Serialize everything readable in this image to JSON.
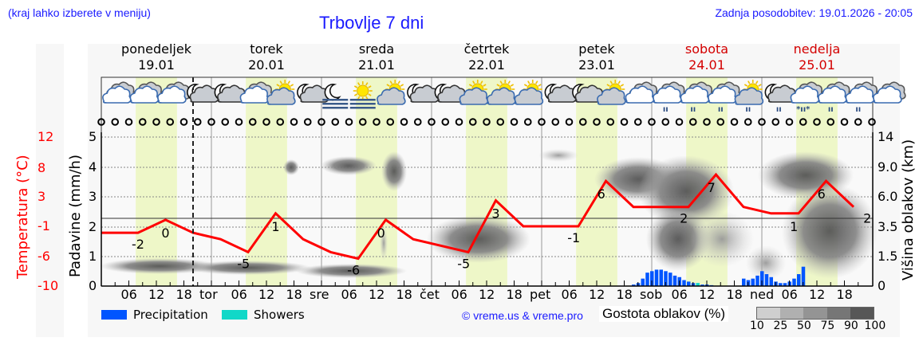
{
  "header": {
    "menu_hint": "(kraj lahko izberete v meniju)",
    "title": "Trbovlje 7 dni",
    "last_update": "Zadnja posodobitev: 19.01.2026 - 20:05"
  },
  "days": [
    {
      "name": "ponedeljek",
      "date": "19.01",
      "weekend": false
    },
    {
      "name": "torek",
      "date": "20.01",
      "weekend": false
    },
    {
      "name": "sreda",
      "date": "21.01",
      "weekend": false
    },
    {
      "name": "četrtek",
      "date": "22.01",
      "weekend": false
    },
    {
      "name": "petek",
      "date": "23.01",
      "weekend": false
    },
    {
      "name": "sobota",
      "date": "24.01",
      "weekend": true
    },
    {
      "name": "nedelja",
      "date": "25.01",
      "weekend": true
    }
  ],
  "axes": {
    "temp_title": "Temperatura (°C)",
    "temp_ticks": [
      "12",
      "8",
      "3",
      "-1",
      "-6",
      "-10"
    ],
    "rain_title": "Padavine (mm/h)",
    "rain_ticks": [
      "5",
      "4",
      "3",
      "2",
      "1",
      "0"
    ],
    "cloud_title": "Višina oblakov (km)",
    "cloud_ticks": [
      "14",
      "9.0",
      "6.0",
      "3.5",
      "1.5",
      "0"
    ],
    "x_ticks": [
      "06",
      "12",
      "18",
      "tor",
      "06",
      "12",
      "18",
      "sre",
      "06",
      "12",
      "18",
      "čet",
      "06",
      "12",
      "18",
      "pet",
      "06",
      "12",
      "18",
      "sob",
      "06",
      "12",
      "18",
      "ned",
      "06",
      "12",
      "18"
    ]
  },
  "legend": {
    "precipitation": "Precipitation",
    "showers": "Showers",
    "copyright": "© vreme.us & vreme.pro",
    "cloud_density": "Gostota oblakov (%)",
    "density_ticks": [
      "10",
      "25",
      "50",
      "75",
      "90",
      "100"
    ]
  },
  "icons": [
    "cloudy",
    "cloudy",
    "cloudy",
    "night-partly-cloudy",
    "night-partly-cloudy",
    "cloudy",
    "partly-sunny",
    "night-partly-cloudy",
    "night-fog",
    "sun-fog",
    "partly-sunny",
    "night-partly-cloudy",
    "night-partly-cloudy",
    "partly-sunny",
    "partly-sunny",
    "partly-sunny",
    "night-partly-cloudy",
    "night-partly-cloudy",
    "partly-sunny",
    "cloudy",
    "cloudy-light-rain",
    "cloudy-light-rain",
    "cloudy-light-rain",
    "partly-sunny-light-rain",
    "night-cloudy-light-rain",
    "cloudy-sleet",
    "cloudy-light-rain",
    "cloudy-light-rain",
    "cloudy"
  ],
  "colors": {
    "temperature_line": "#ff0000",
    "precipitation": "#0055ff",
    "showers": "#11d8c8",
    "daylight": "#eef7c8",
    "title": "#1a1aff",
    "weekend": "#d40000"
  },
  "chart_data": {
    "type": "line",
    "title": "Trbovlje 7 dni",
    "xlabel": "",
    "ylabel": "Padavine (mm/h)",
    "ylim": [
      0,
      5
    ],
    "y2label": "Temperatura (°C)",
    "y2lim": [
      -10,
      12
    ],
    "y3label": "Višina oblakov (km)",
    "categories": [
      "Mon 19.01",
      "Tue 20.01",
      "Wed 21.01",
      "Thu 22.01",
      "Fri 23.01",
      "Sat 24.01",
      "Sun 25.01"
    ],
    "series": [
      {
        "name": "Temperatura (°C)",
        "hours": [
          0,
          8,
          14,
          20,
          26,
          32,
          38,
          44,
          50,
          56,
          62,
          68,
          74,
          80,
          86,
          92,
          98,
          104,
          110,
          116,
          122,
          128,
          134,
          140,
          146,
          152,
          158,
          164
        ],
        "values": [
          -2,
          -2,
          0,
          -2,
          -3,
          -5,
          1,
          -3,
          -5,
          -6,
          0,
          -3,
          -4,
          -5,
          3,
          -1,
          -1,
          -1,
          6,
          2,
          2,
          2,
          7,
          2,
          1,
          1,
          6,
          2
        ],
        "labels": [
          {
            "hour": 8,
            "value": -2
          },
          {
            "hour": 14,
            "value": 0
          },
          {
            "hour": 31,
            "value": -5
          },
          {
            "hour": 38,
            "value": 1
          },
          {
            "hour": 55,
            "value": -6
          },
          {
            "hour": 61,
            "value": 0
          },
          {
            "hour": 79,
            "value": -5
          },
          {
            "hour": 86,
            "value": 3
          },
          {
            "hour": 103,
            "value": -1
          },
          {
            "hour": 109,
            "value": 6
          },
          {
            "hour": 127,
            "value": 2
          },
          {
            "hour": 133,
            "value": 7
          },
          {
            "hour": 151,
            "value": 1
          },
          {
            "hour": 157,
            "value": 6
          },
          {
            "hour": 167,
            "value": 2
          }
        ]
      },
      {
        "name": "Precipitation (mm/h)",
        "hours": [
          116,
          117,
          118,
          119,
          120,
          121,
          122,
          123,
          124,
          125,
          126,
          127,
          128,
          129,
          130,
          131,
          132,
          133,
          140,
          141,
          142,
          143,
          144,
          145,
          146,
          147,
          148,
          149,
          150,
          151,
          152,
          153,
          154,
          155
        ],
        "values": [
          0.05,
          0.1,
          0.25,
          0.45,
          0.5,
          0.55,
          0.55,
          0.5,
          0.45,
          0.35,
          0.3,
          0.2,
          0.15,
          0.1,
          0.08,
          0.05,
          0.05,
          0.03,
          0.25,
          0.2,
          0.25,
          0.35,
          0.5,
          0.4,
          0.3,
          0.15,
          0.1,
          0.1,
          0.15,
          0.25,
          0.4,
          0.65,
          0.0,
          0.0
        ]
      },
      {
        "name": "Showers (mm/h)",
        "hours": [
          130
        ],
        "values": [
          0.05
        ]
      }
    ],
    "cloud_density_scale": [
      10,
      25,
      50,
      75,
      90,
      100
    ],
    "daylight_hours": [
      7.5,
      16.5
    ],
    "current_time_hour": 20,
    "grid": true
  }
}
